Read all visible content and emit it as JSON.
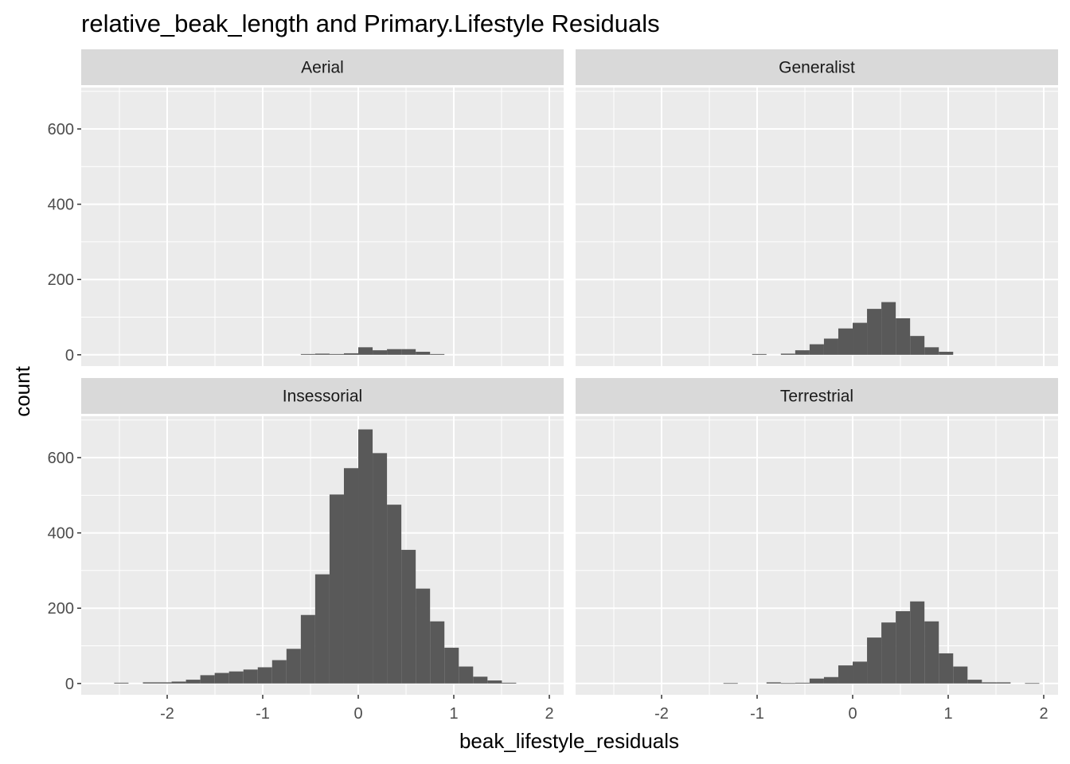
{
  "chart_data": {
    "type": "histogram",
    "title": "relative_beak_length and Primary.Lifestyle Residuals",
    "xlabel": "beak_lifestyle_residuals",
    "ylabel": "count",
    "xlim": [
      -2.9,
      2.15
    ],
    "ylim": [
      -30,
      710
    ],
    "x_ticks": [
      -2,
      -1,
      0,
      1,
      2
    ],
    "x_tick_labels": [
      "-2",
      "-1",
      "0",
      "1",
      "2"
    ],
    "y_ticks": [
      0,
      200,
      400,
      600
    ],
    "y_tick_labels": [
      "0",
      "200",
      "400",
      "600"
    ],
    "grid": true,
    "bar_color": "#595959",
    "panel_bg": "#ebebeb",
    "strip_bg": "#d9d9d9",
    "bin_width": 0.1503,
    "bin_start": -2.555,
    "panels": [
      {
        "name": "Aerial",
        "counts": [
          0,
          0,
          0,
          0,
          0,
          0,
          0,
          0,
          0,
          0,
          0,
          0,
          0,
          2,
          3,
          2,
          4,
          20,
          12,
          15,
          15,
          8,
          2,
          0,
          0,
          0,
          0,
          0,
          0,
          0,
          0,
          0,
          0,
          0
        ]
      },
      {
        "name": "Generalist",
        "counts": [
          0,
          0,
          0,
          0,
          0,
          0,
          0,
          0,
          0,
          0,
          2,
          0,
          3,
          12,
          28,
          43,
          70,
          85,
          122,
          140,
          97,
          50,
          20,
          8,
          0,
          0,
          0,
          0,
          0,
          0,
          0,
          0,
          0,
          0
        ]
      },
      {
        "name": "Insessorial",
        "counts": [
          2,
          0,
          3,
          3,
          5,
          10,
          22,
          28,
          32,
          37,
          43,
          62,
          92,
          182,
          290,
          502,
          572,
          675,
          612,
          475,
          355,
          252,
          165,
          95,
          45,
          18,
          8,
          2,
          0,
          0,
          0,
          0,
          0,
          0
        ]
      },
      {
        "name": "Terrestrial",
        "counts": [
          0,
          0,
          0,
          0,
          0,
          0,
          0,
          0,
          1,
          0,
          0,
          3,
          1,
          2,
          13,
          17,
          48,
          58,
          122,
          162,
          192,
          218,
          165,
          80,
          45,
          10,
          3,
          3,
          0,
          1,
          0,
          0,
          0,
          0
        ]
      }
    ]
  }
}
